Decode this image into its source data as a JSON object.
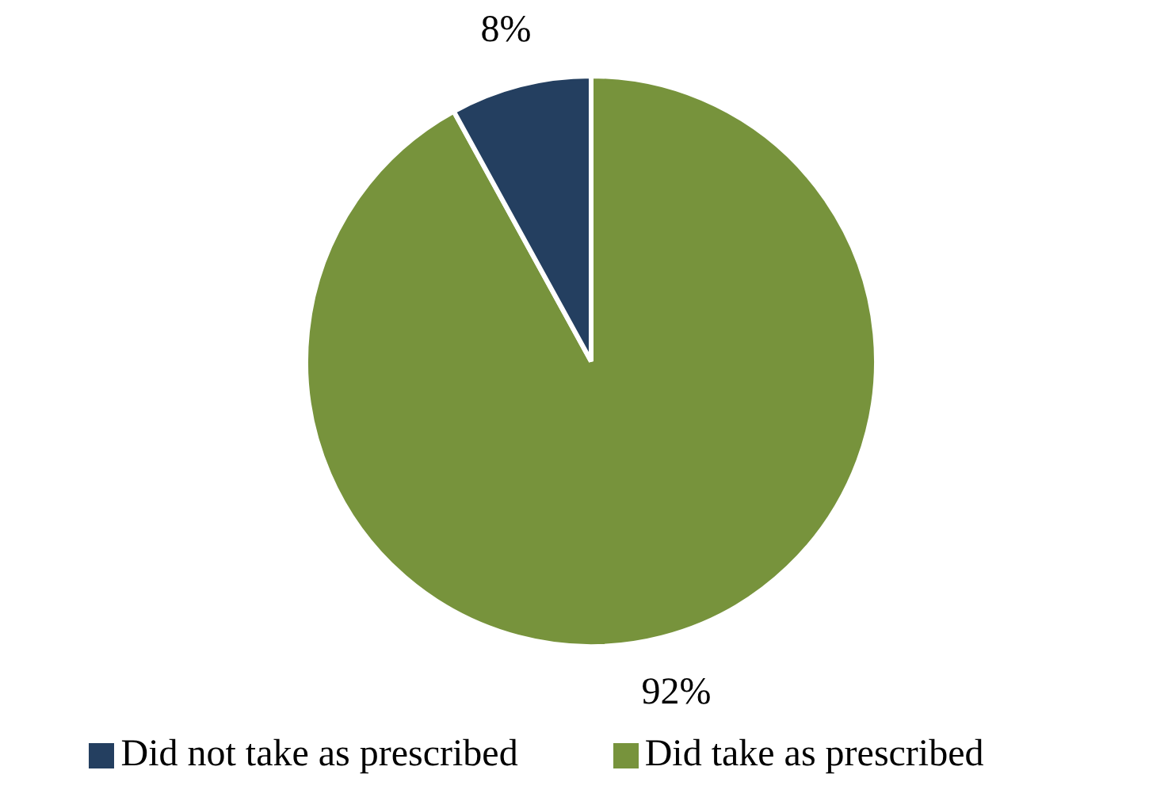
{
  "chart_data": {
    "type": "pie",
    "categories": [
      "Did take as prescribed",
      "Did not take as prescribed"
    ],
    "values": [
      92,
      8
    ],
    "colors": [
      "#77933c",
      "#243f60"
    ],
    "value_labels": [
      "92%",
      "8%"
    ],
    "legend": "bottom"
  }
}
